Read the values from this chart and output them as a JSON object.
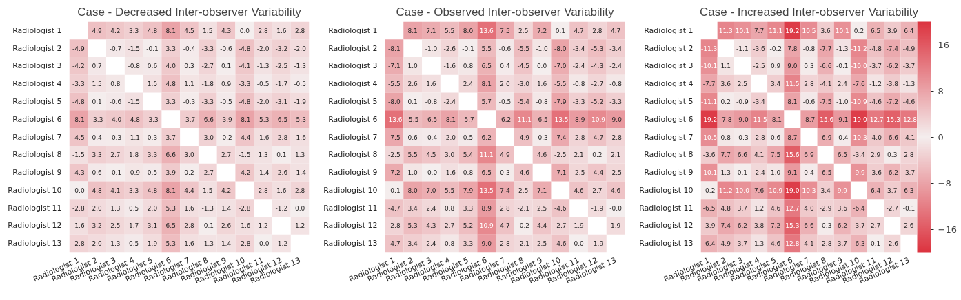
{
  "chart_data": [
    {
      "type": "heatmap",
      "title": "Case - Decreased Inter-observer Variability",
      "categories": [
        "Radiologist 1",
        "Radiologist 2",
        "Radiologist 3",
        "Radiologist 4",
        "Radiologist 5",
        "Radiologist 6",
        "Radiologist 7",
        "Radiologist 8",
        "Radiologist 9",
        "Radiologist 10",
        "Radiologist 11",
        "Radiologist 12",
        "Radiologist 13"
      ],
      "y_categories": [
        "Radiologist 1",
        "Radiologist 2",
        "Radiologist 3",
        "Radiologist 4",
        "Radiologist 5",
        "Radiologist 6",
        "Radiologist 7",
        "Radiologist 8",
        "Radiologist 9",
        "Radiologist 10",
        "Radiologist 11",
        "Radiologist 12",
        "Radiologist 13"
      ],
      "cells": [
        [
          null,
          4.9,
          4.2,
          3.3,
          4.8,
          8.1,
          4.5,
          1.5,
          4.3,
          0.0,
          2.8,
          1.6,
          2.8
        ],
        [
          -4.9,
          null,
          -0.7,
          -1.5,
          -0.1,
          3.3,
          -0.4,
          -3.3,
          -0.6,
          -4.8,
          -2.0,
          -3.2,
          -2.0
        ],
        [
          -4.2,
          0.7,
          null,
          -0.8,
          0.6,
          4.0,
          0.3,
          -2.7,
          0.1,
          -4.1,
          -1.3,
          -2.5,
          -1.3
        ],
        [
          -3.3,
          1.5,
          0.8,
          null,
          1.5,
          4.8,
          1.1,
          -1.8,
          0.9,
          -3.3,
          -0.5,
          -1.7,
          -0.5
        ],
        [
          -4.8,
          0.1,
          -0.6,
          -1.5,
          null,
          3.3,
          -0.3,
          -3.3,
          -0.5,
          -4.8,
          -2.0,
          -3.1,
          -1.9
        ],
        [
          -8.1,
          -3.3,
          -4.0,
          -4.8,
          -3.3,
          null,
          -3.7,
          -6.6,
          -3.9,
          -8.1,
          -5.3,
          -6.5,
          -5.3
        ],
        [
          -4.5,
          0.4,
          -0.3,
          -1.1,
          0.3,
          3.7,
          null,
          -3.0,
          -0.2,
          -4.4,
          -1.6,
          -2.8,
          -1.6
        ],
        [
          -1.5,
          3.3,
          2.7,
          1.8,
          3.3,
          6.6,
          3.0,
          null,
          2.7,
          -1.5,
          1.3,
          0.1,
          1.3
        ],
        [
          -4.3,
          0.6,
          -0.1,
          -0.9,
          0.5,
          3.9,
          0.2,
          -2.7,
          null,
          -4.2,
          -1.4,
          -2.6,
          -1.4
        ],
        [
          -0.0,
          4.8,
          4.1,
          3.3,
          4.8,
          8.1,
          4.4,
          1.5,
          4.2,
          null,
          2.8,
          1.6,
          2.8
        ],
        [
          -2.8,
          2.0,
          1.3,
          0.5,
          2.0,
          5.3,
          1.6,
          -1.3,
          1.4,
          -2.8,
          null,
          -1.2,
          0.0
        ],
        [
          -1.6,
          3.2,
          2.5,
          1.7,
          3.1,
          6.5,
          2.8,
          -0.1,
          2.6,
          -1.6,
          1.2,
          null,
          1.2
        ],
        [
          -2.8,
          2.0,
          1.3,
          0.5,
          1.9,
          5.3,
          1.6,
          -1.3,
          1.4,
          -2.8,
          -0.0,
          -1.2,
          null
        ]
      ],
      "cell_labels": [
        [
          null,
          "4.9",
          "4.2",
          "3.3",
          "4.8",
          "8.1",
          "4.5",
          "1.5",
          "4.3",
          "0.0",
          "2.8",
          "1.6",
          "2.8"
        ],
        [
          "-4.9",
          null,
          "-0.7",
          "-1.5",
          "-0.1",
          "3.3",
          "-0.4",
          "-3.3",
          "-0.6",
          "-4.8",
          "-2.0",
          "-3.2",
          "-2.0"
        ],
        [
          "-4.2",
          "0.7",
          null,
          "-0.8",
          "0.6",
          "4.0",
          "0.3",
          "-2.7",
          "0.1",
          "-4.1",
          "-1.3",
          "-2.5",
          "-1.3"
        ],
        [
          "-3.3",
          "1.5",
          "0.8",
          null,
          "1.5",
          "4.8",
          "1.1",
          "-1.8",
          "0.9",
          "-3.3",
          "-0.5",
          "-1.7",
          "-0.5"
        ],
        [
          "-4.8",
          "0.1",
          "-0.6",
          "-1.5",
          null,
          "3.3",
          "-0.3",
          "-3.3",
          "-0.5",
          "-4.8",
          "-2.0",
          "-3.1",
          "-1.9"
        ],
        [
          "-8.1",
          "-3.3",
          "-4.0",
          "-4.8",
          "-3.3",
          null,
          "-3.7",
          "-6.6",
          "-3.9",
          "-8.1",
          "-5.3",
          "-6.5",
          "-5.3"
        ],
        [
          "-4.5",
          "0.4",
          "-0.3",
          "-1.1",
          "0.3",
          "3.7",
          null,
          "-3.0",
          "-0.2",
          "-4.4",
          "-1.6",
          "-2.8",
          "-1.6"
        ],
        [
          "-1.5",
          "3.3",
          "2.7",
          "1.8",
          "3.3",
          "6.6",
          "3.0",
          null,
          "2.7",
          "-1.5",
          "1.3",
          "0.1",
          "1.3"
        ],
        [
          "-4.3",
          "0.6",
          "-0.1",
          "-0.9",
          "0.5",
          "3.9",
          "0.2",
          "-2.7",
          null,
          "-4.2",
          "-1.4",
          "-2.6",
          "-1.4"
        ],
        [
          "-0.0",
          "4.8",
          "4.1",
          "3.3",
          "4.8",
          "8.1",
          "4.4",
          "1.5",
          "4.2",
          null,
          "2.8",
          "1.6",
          "2.8"
        ],
        [
          "-2.8",
          "2.0",
          "1.3",
          "0.5",
          "2.0",
          "5.3",
          "1.6",
          "-1.3",
          "1.4",
          "-2.8",
          null,
          "-1.2",
          "0.0"
        ],
        [
          "-1.6",
          "3.2",
          "2.5",
          "1.7",
          "3.1",
          "6.5",
          "2.8",
          "-0.1",
          "2.6",
          "-1.6",
          "1.2",
          null,
          "1.2"
        ],
        [
          "-2.8",
          "2.0",
          "1.3",
          "0.5",
          "1.9",
          "5.3",
          "1.6",
          "-1.3",
          "1.4",
          "-2.8",
          "-0.0",
          "-1.2",
          null
        ]
      ]
    },
    {
      "type": "heatmap",
      "title": "Case - Observed Inter-observer Variability",
      "categories": [
        "Radiologist 1",
        "Radiologist 2",
        "Radiologist 3",
        "Radiologist 4",
        "Radiologist 5",
        "Radiologist 6",
        "Radiologist 7",
        "Radiologist 8",
        "Radiologist 9",
        "Radiologist 10",
        "Radiologist 11",
        "Radiologist 12",
        "Radiologist 13"
      ],
      "y_categories": [
        "Radiologist 1",
        "Radiologist 2",
        "Radiologist 3",
        "Radiologist 4",
        "Radiologist 5",
        "Radiologist 6",
        "Radiologist 7",
        "Radiologist 8",
        "Radiologist 9",
        "Radiologist 10",
        "Radiologist 11",
        "Radiologist 12",
        "Radiologist 13"
      ],
      "cells": [
        [
          null,
          8.1,
          7.1,
          5.5,
          8.0,
          13.6,
          7.5,
          2.5,
          7.2,
          0.1,
          4.7,
          2.8,
          4.7
        ],
        [
          -8.1,
          null,
          -1.0,
          -2.6,
          -0.1,
          5.5,
          -0.6,
          -5.5,
          -1.0,
          -8.0,
          -3.4,
          -5.3,
          -3.4
        ],
        [
          -7.1,
          1.0,
          null,
          -1.6,
          0.8,
          6.5,
          0.4,
          -4.5,
          0.0,
          -7.0,
          -2.4,
          -4.3,
          -2.4
        ],
        [
          -5.5,
          2.6,
          1.6,
          null,
          2.4,
          8.1,
          2.0,
          -3.0,
          1.6,
          -5.5,
          -0.8,
          -2.7,
          -0.8
        ],
        [
          -8.0,
          0.1,
          -0.8,
          -2.4,
          null,
          5.7,
          -0.5,
          -5.4,
          -0.8,
          -7.9,
          -3.3,
          -5.2,
          -3.3
        ],
        [
          -13.6,
          -5.5,
          -6.5,
          -8.1,
          -5.7,
          null,
          -6.2,
          -11.1,
          -6.5,
          -13.5,
          -8.9,
          -10.9,
          -9.0
        ],
        [
          -7.5,
          0.6,
          -0.4,
          -2.0,
          0.5,
          6.2,
          null,
          -4.9,
          -0.3,
          -7.4,
          -2.8,
          -4.7,
          -2.8
        ],
        [
          -2.5,
          5.5,
          4.5,
          3.0,
          5.4,
          11.1,
          4.9,
          null,
          4.6,
          -2.5,
          2.1,
          0.2,
          2.1
        ],
        [
          -7.2,
          1.0,
          -0.0,
          -1.6,
          0.8,
          6.5,
          0.3,
          -4.6,
          null,
          -7.1,
          -2.5,
          -4.4,
          -2.5
        ],
        [
          -0.1,
          8.0,
          7.0,
          5.5,
          7.9,
          13.5,
          7.4,
          2.5,
          7.1,
          null,
          4.6,
          2.7,
          4.6
        ],
        [
          -4.7,
          3.4,
          2.4,
          0.8,
          3.3,
          8.9,
          2.8,
          -2.1,
          2.5,
          -4.6,
          null,
          -1.9,
          -0.0
        ],
        [
          -2.8,
          5.3,
          4.3,
          2.7,
          5.2,
          10.9,
          4.7,
          -0.2,
          4.4,
          -2.7,
          1.9,
          null,
          1.9
        ],
        [
          -4.7,
          3.4,
          2.4,
          0.8,
          3.3,
          9.0,
          2.8,
          -2.1,
          2.5,
          -4.6,
          0.0,
          -1.9,
          null
        ]
      ],
      "cell_labels": [
        [
          null,
          "8.1",
          "7.1",
          "5.5",
          "8.0",
          "13.6",
          "7.5",
          "2.5",
          "7.2",
          "0.1",
          "4.7",
          "2.8",
          "4.7"
        ],
        [
          "-8.1",
          null,
          "-1.0",
          "-2.6",
          "-0.1",
          "5.5",
          "-0.6",
          "-5.5",
          "-1.0",
          "-8.0",
          "-3.4",
          "-5.3",
          "-3.4"
        ],
        [
          "-7.1",
          "1.0",
          null,
          "-1.6",
          "0.8",
          "6.5",
          "0.4",
          "-4.5",
          "0.0",
          "-7.0",
          "-2.4",
          "-4.3",
          "-2.4"
        ],
        [
          "-5.5",
          "2.6",
          "1.6",
          null,
          "2.4",
          "8.1",
          "2.0",
          "-3.0",
          "1.6",
          "-5.5",
          "-0.8",
          "-2.7",
          "-0.8"
        ],
        [
          "-8.0",
          "0.1",
          "-0.8",
          "-2.4",
          null,
          "5.7",
          "-0.5",
          "-5.4",
          "-0.8",
          "-7.9",
          "-3.3",
          "-5.2",
          "-3.3"
        ],
        [
          "-13.6",
          "-5.5",
          "-6.5",
          "-8.1",
          "-5.7",
          null,
          "-6.2",
          "-11.1",
          "-6.5",
          "-13.5",
          "-8.9",
          "-10.9",
          "-9.0"
        ],
        [
          "-7.5",
          "0.6",
          "-0.4",
          "-2.0",
          "0.5",
          "6.2",
          null,
          "-4.9",
          "-0.3",
          "-7.4",
          "-2.8",
          "-4.7",
          "-2.8"
        ],
        [
          "-2.5",
          "5.5",
          "4.5",
          "3.0",
          "5.4",
          "11.1",
          "4.9",
          null,
          "4.6",
          "-2.5",
          "2.1",
          "0.2",
          "2.1"
        ],
        [
          "-7.2",
          "1.0",
          "-0.0",
          "-1.6",
          "0.8",
          "6.5",
          "0.3",
          "-4.6",
          null,
          "-7.1",
          "-2.5",
          "-4.4",
          "-2.5"
        ],
        [
          "-0.1",
          "8.0",
          "7.0",
          "5.5",
          "7.9",
          "13.5",
          "7.4",
          "2.5",
          "7.1",
          null,
          "4.6",
          "2.7",
          "4.6"
        ],
        [
          "-4.7",
          "3.4",
          "2.4",
          "0.8",
          "3.3",
          "8.9",
          "2.8",
          "-2.1",
          "2.5",
          "-4.6",
          null,
          "-1.9",
          "-0.0"
        ],
        [
          "-2.8",
          "5.3",
          "4.3",
          "2.7",
          "5.2",
          "10.9",
          "4.7",
          "-0.2",
          "4.4",
          "-2.7",
          "1.9",
          null,
          "1.9"
        ],
        [
          "-4.7",
          "3.4",
          "2.4",
          "0.8",
          "3.3",
          "9.0",
          "2.8",
          "-2.1",
          "2.5",
          "-4.6",
          "0.0",
          "-1.9",
          null
        ]
      ]
    },
    {
      "type": "heatmap",
      "title": "Case - Increased Inter-observer Variability",
      "categories": [
        "Radiologist 1",
        "Radiologist 2",
        "Radiologist 3",
        "Radiologist 4",
        "Radiologist 5",
        "Radiologist 6",
        "Radiologist 7",
        "Radiologist 8",
        "Radiologist 9",
        "Radiologist 10",
        "Radiologist 11",
        "Radiologist 12",
        "Radiologist 13"
      ],
      "y_categories": [
        "Radiologist 1",
        "Radiologist 2",
        "Radiologist 3",
        "Radiologist 4",
        "Radiologist 5",
        "Radiologist 6",
        "Radiologist 7",
        "Radiologist 8",
        "Radiologist 9",
        "Radiologist 10",
        "Radiologist 11",
        "Radiologist 12",
        "Radiologist 13"
      ],
      "clim": [
        -20,
        20
      ],
      "cticks": [
        {
          "value": -16,
          "label": "−16"
        },
        {
          "value": -8,
          "label": "−8"
        },
        0,
        8,
        16
      ],
      "cells": [
        [
          null,
          11.3,
          10.1,
          7.7,
          11.1,
          19.2,
          10.5,
          3.6,
          10.1,
          0.2,
          6.5,
          3.9,
          6.4
        ],
        [
          -11.3,
          null,
          -1.1,
          -3.6,
          -0.2,
          7.8,
          -0.8,
          -7.7,
          -1.3,
          -11.2,
          -4.8,
          -7.4,
          -4.9
        ],
        [
          -10.1,
          1.1,
          null,
          -2.5,
          0.9,
          9.0,
          0.3,
          -6.6,
          -0.1,
          -10.0,
          -3.7,
          -6.2,
          -3.7
        ],
        [
          -7.7,
          3.6,
          2.5,
          null,
          3.4,
          11.5,
          2.8,
          -4.1,
          2.4,
          -7.6,
          -1.2,
          -3.8,
          -1.3
        ],
        [
          -11.1,
          0.2,
          -0.9,
          -3.4,
          null,
          8.1,
          -0.6,
          -7.5,
          -1.0,
          -10.9,
          -4.6,
          -7.2,
          -4.6
        ],
        [
          -19.2,
          -7.8,
          -9.0,
          -11.5,
          -8.1,
          null,
          -8.7,
          -15.6,
          -9.1,
          -19.0,
          -12.7,
          -15.3,
          -12.8
        ],
        [
          -10.5,
          0.8,
          -0.3,
          -2.8,
          0.6,
          8.7,
          null,
          -6.9,
          -0.4,
          -10.3,
          -4.0,
          -6.6,
          -4.1
        ],
        [
          -3.6,
          7.7,
          6.6,
          4.1,
          7.5,
          15.6,
          6.9,
          null,
          6.5,
          -3.4,
          2.9,
          0.3,
          2.8
        ],
        [
          -10.1,
          1.3,
          0.1,
          -2.4,
          1.0,
          9.1,
          0.4,
          -6.5,
          null,
          -9.9,
          -3.6,
          -6.2,
          -3.7
        ],
        [
          -0.2,
          11.2,
          10.0,
          7.6,
          10.9,
          19.0,
          10.3,
          3.4,
          9.9,
          null,
          6.4,
          3.7,
          6.3
        ],
        [
          -6.5,
          4.8,
          3.7,
          1.2,
          4.6,
          12.7,
          4.0,
          -2.9,
          3.6,
          -6.4,
          null,
          -2.7,
          -0.1
        ],
        [
          -3.9,
          7.4,
          6.2,
          3.8,
          7.2,
          15.3,
          6.6,
          -0.3,
          6.2,
          -3.7,
          2.7,
          null,
          2.6
        ],
        [
          -6.4,
          4.9,
          3.7,
          1.3,
          4.6,
          12.8,
          4.1,
          -2.8,
          3.7,
          -6.3,
          0.1,
          -2.6,
          null
        ]
      ],
      "cell_labels": [
        [
          null,
          "11.3",
          "10.1",
          "7.7",
          "11.1",
          "19.2",
          "10.5",
          "3.6",
          "10.1",
          "0.2",
          "6.5",
          "3.9",
          "6.4"
        ],
        [
          "-11.3",
          null,
          "-1.1",
          "-3.6",
          "-0.2",
          "7.8",
          "-0.8",
          "-7.7",
          "-1.3",
          "-11.2",
          "-4.8",
          "-7.4",
          "-4.9"
        ],
        [
          "-10.1",
          "1.1",
          null,
          "-2.5",
          "0.9",
          "9.0",
          "0.3",
          "-6.6",
          "-0.1",
          "-10.0",
          "-3.7",
          "-6.2",
          "-3.7"
        ],
        [
          "-7.7",
          "3.6",
          "2.5",
          null,
          "3.4",
          "11.5",
          "2.8",
          "-4.1",
          "2.4",
          "-7.6",
          "-1.2",
          "-3.8",
          "-1.3"
        ],
        [
          "-11.1",
          "0.2",
          "-0.9",
          "-3.4",
          null,
          "8.1",
          "-0.6",
          "-7.5",
          "-1.0",
          "-10.9",
          "-4.6",
          "-7.2",
          "-4.6"
        ],
        [
          "-19.2",
          "-7.8",
          "-9.0",
          "-11.5",
          "-8.1",
          null,
          "-8.7",
          "-15.6",
          "-9.1",
          "-19.0",
          "-12.7",
          "-15.3",
          "-12.8"
        ],
        [
          "-10.5",
          "0.8",
          "-0.3",
          "-2.8",
          "0.6",
          "8.7",
          null,
          "-6.9",
          "-0.4",
          "-10.3",
          "-4.0",
          "-6.6",
          "-4.1"
        ],
        [
          "-3.6",
          "7.7",
          "6.6",
          "4.1",
          "7.5",
          "15.6",
          "6.9",
          null,
          "6.5",
          "-3.4",
          "2.9",
          "0.3",
          "2.8"
        ],
        [
          "-10.1",
          "1.3",
          "0.1",
          "-2.4",
          "1.0",
          "9.1",
          "0.4",
          "-6.5",
          null,
          "-9.9",
          "-3.6",
          "-6.2",
          "-3.7"
        ],
        [
          "-0.2",
          "11.2",
          "10.0",
          "7.6",
          "10.9",
          "19.0",
          "10.3",
          "3.4",
          "9.9",
          null,
          "6.4",
          "3.7",
          "6.3"
        ],
        [
          "-6.5",
          "4.8",
          "3.7",
          "1.2",
          "4.6",
          "12.7",
          "4.0",
          "-2.9",
          "3.6",
          "-6.4",
          null,
          "-2.7",
          "-0.1"
        ],
        [
          "-3.9",
          "7.4",
          "6.2",
          "3.8",
          "7.2",
          "15.3",
          "6.6",
          "-0.3",
          "6.2",
          "-3.7",
          "2.7",
          null,
          "2.6"
        ],
        [
          "-6.4",
          "4.9",
          "3.7",
          "1.3",
          "4.6",
          "12.8",
          "4.1",
          "-2.8",
          "3.7",
          "-6.3",
          "0.1",
          "-2.6",
          null
        ]
      ]
    }
  ]
}
